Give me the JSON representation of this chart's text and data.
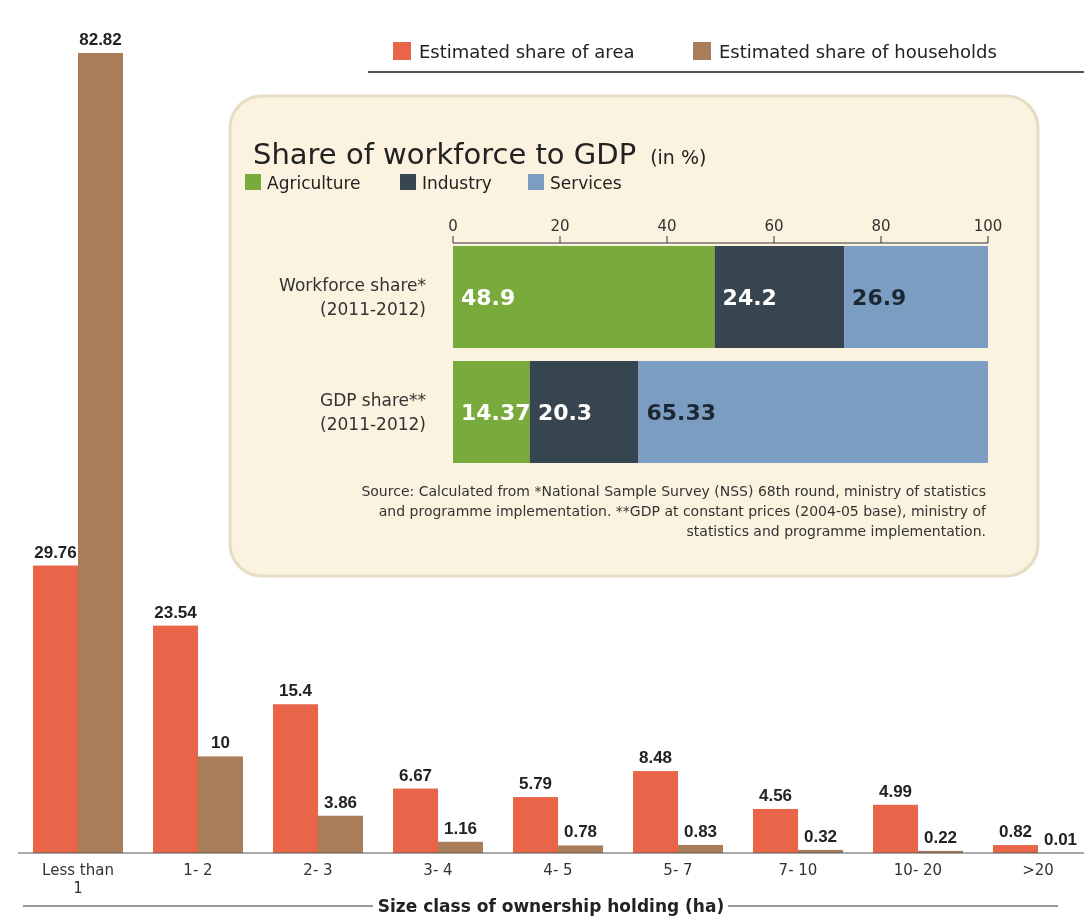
{
  "chart_data": [
    {
      "type": "bar",
      "xlabel": "Size class of ownership holding (ha)",
      "categories": [
        "Less than\n1",
        "1- 2",
        "2- 3",
        "3- 4",
        "4- 5",
        "5- 7",
        "7- 10",
        "10- 20",
        ">20"
      ],
      "series": [
        {
          "name": "Estimated share of area",
          "color": "#e8654a",
          "values": [
            29.76,
            23.54,
            15.4,
            6.67,
            5.79,
            8.48,
            4.56,
            4.99,
            0.82
          ]
        },
        {
          "name": "Estimated share of households",
          "color": "#a97c5a",
          "values": [
            82.82,
            10,
            3.86,
            1.16,
            0.78,
            0.83,
            0.32,
            0.22,
            0.01
          ]
        }
      ],
      "data_labels": true,
      "legend": "top right"
    },
    {
      "type": "bar",
      "orientation": "horizontal",
      "stacked": true,
      "title": "Share of workforce to GDP",
      "subtitle": "(in %)",
      "categories": [
        "Workforce share*\n(2011-2012)",
        "GDP share**\n(2011-2012)"
      ],
      "series": [
        {
          "name": "Agriculture",
          "color": "#79ab3c",
          "values": [
            48.9,
            14.37
          ]
        },
        {
          "name": "Industry",
          "color": "#36454f",
          "values": [
            24.2,
            20.3
          ]
        },
        {
          "name": "Services",
          "color": "#7b9dc2",
          "values": [
            26.9,
            65.33
          ]
        }
      ],
      "xlim": [
        0,
        100
      ],
      "xticks": [
        0,
        20,
        40,
        60,
        80,
        100
      ],
      "data_labels": true,
      "legend": "top left",
      "annotations": [
        "Source: Calculated from *National Sample Survey (NSS) 68th round, ministry of statistics and programme implementation. **GDP at constant prices (2004-05 base), ministry of statistics and programme implementation."
      ]
    }
  ]
}
